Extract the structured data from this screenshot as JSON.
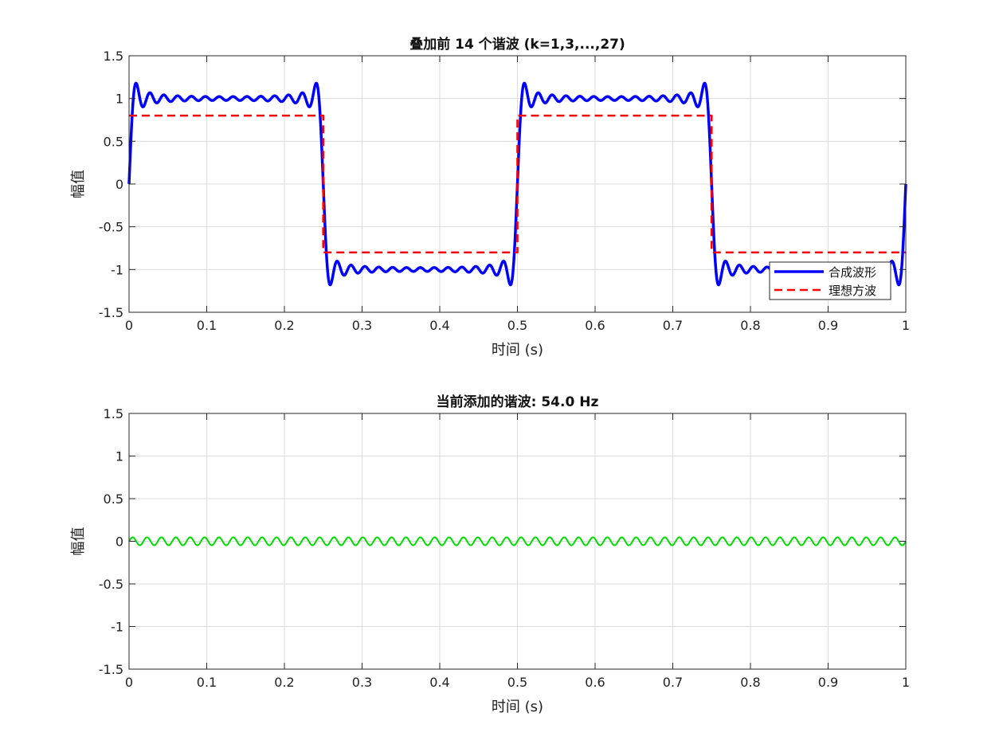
{
  "chart_data": [
    {
      "type": "line",
      "title": "叠加前 14 个谐波 (k=1,3,...,27)",
      "xlabel": "时间 (s)",
      "ylabel": "幅值",
      "xlim": [
        0,
        1
      ],
      "ylim": [
        -1.5,
        1.5
      ],
      "xticks": [
        "0",
        "0.1",
        "0.2",
        "0.3",
        "0.4",
        "0.5",
        "0.6",
        "0.7",
        "0.8",
        "0.9",
        "1"
      ],
      "yticks": [
        "-1.5",
        "-1",
        "-0.5",
        "0",
        "0.5",
        "1",
        "1.5"
      ],
      "grid": true,
      "legend_position": "bottom-right",
      "series": [
        {
          "name": "合成波形",
          "color": "#0000ff",
          "style": "solid",
          "description_fn": "fourier_square",
          "frequency_hz": 2,
          "harmonics": [
            1,
            3,
            5,
            7,
            9,
            11,
            13,
            15,
            17,
            19,
            21,
            23,
            25,
            27
          ]
        },
        {
          "name": "理想方波",
          "color": "#ff0000",
          "style": "dashed",
          "x": [
            0,
            0.25,
            0.25,
            0.5,
            0.5,
            0.75,
            0.75,
            1.0
          ],
          "y": [
            0.8,
            0.8,
            -0.8,
            -0.8,
            0.8,
            0.8,
            -0.8,
            -0.8
          ]
        }
      ]
    },
    {
      "type": "line",
      "title": "当前添加的谐波: 54.0 Hz",
      "xlabel": "时间 (s)",
      "ylabel": "幅值",
      "xlim": [
        0,
        1
      ],
      "ylim": [
        -1.5,
        1.5
      ],
      "xticks": [
        "0",
        "0.1",
        "0.2",
        "0.3",
        "0.4",
        "0.5",
        "0.6",
        "0.7",
        "0.8",
        "0.9",
        "1"
      ],
      "yticks": [
        "-1.5",
        "-1",
        "-0.5",
        "0",
        "0.5",
        "1",
        "1.5"
      ],
      "grid": true,
      "series": [
        {
          "color": "#00dd00",
          "style": "solid",
          "frequency_hz": 54,
          "amplitude": 0.047
        }
      ]
    }
  ]
}
